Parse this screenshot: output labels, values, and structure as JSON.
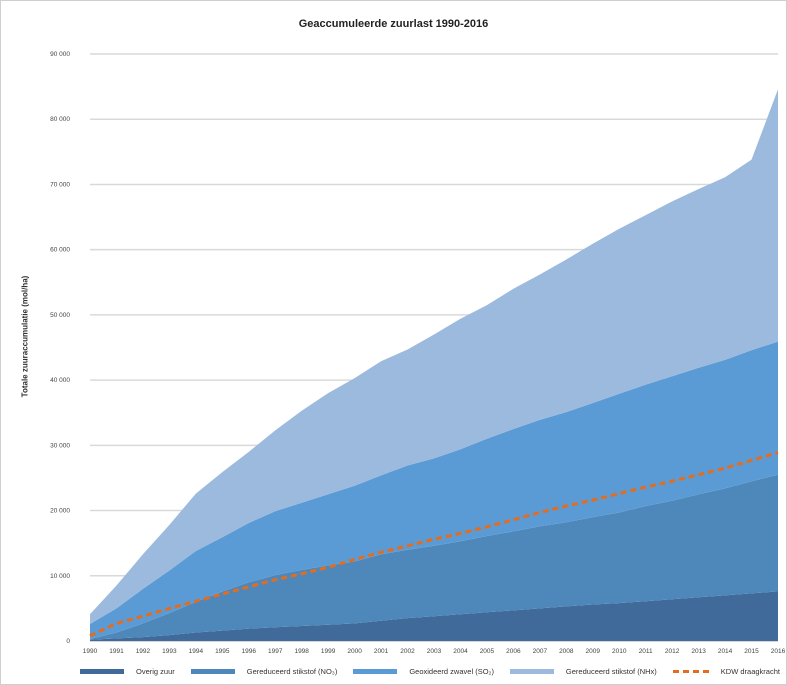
{
  "chart_data": {
    "type": "area",
    "title": "Geaccumuleerde zuurlast 1990-2016",
    "ylabel": "Totale zuuraccumulatie (mol/ha)",
    "xlabel": "",
    "ylim": [
      0,
      90000
    ],
    "yticks": [
      0,
      10000,
      20000,
      30000,
      40000,
      50000,
      60000,
      70000,
      80000,
      90000
    ],
    "ytick_labels": [
      "0",
      "10 000",
      "20 000",
      "30 000",
      "40 000",
      "50 000",
      "60 000",
      "70 000",
      "80 000",
      "90 000"
    ],
    "x": [
      "1990",
      "1991",
      "1992",
      "1993",
      "1994",
      "1995",
      "1996",
      "1997",
      "1998",
      "1999",
      "2000",
      "2001",
      "2002",
      "2003",
      "2004",
      "2005",
      "2006",
      "2007",
      "2008",
      "2009",
      "2010",
      "2011",
      "2012",
      "2013",
      "2014",
      "2015",
      "2016"
    ],
    "stacked": true,
    "series": [
      {
        "name": "Overig zuur",
        "color": "#3f6a9a",
        "values": [
          200,
          400,
          600,
          900,
          1300,
          1600,
          1900,
          2100,
          2300,
          2500,
          2700,
          3100,
          3500,
          3800,
          4100,
          4400,
          4700,
          5000,
          5300,
          5600,
          5800,
          6100,
          6400,
          6700,
          7000,
          7300,
          7600
        ]
      },
      {
        "name": "Gereduceerd stikstof (NO₃)",
        "color": "#4e88bb",
        "values": [
          100,
          900,
          2100,
          3400,
          4700,
          6000,
          7100,
          8000,
          8600,
          9100,
          9500,
          10200,
          10500,
          10800,
          11200,
          11700,
          12100,
          12600,
          12900,
          13400,
          13900,
          14600,
          15100,
          15800,
          16400,
          17200,
          17900
        ]
      },
      {
        "name": "Geoxideerd zwavel (SO₂)",
        "color": "#5b9bd5",
        "values": [
          2300,
          3700,
          5300,
          6500,
          7800,
          8300,
          9100,
          9800,
          10300,
          10900,
          11600,
          12100,
          12900,
          13400,
          14100,
          14900,
          15700,
          16300,
          16900,
          17500,
          18200,
          18600,
          19100,
          19400,
          19700,
          20100,
          20400
        ]
      },
      {
        "name": "Gereduceerd stikstof (NHx)",
        "color": "#9bbade",
        "values": [
          1500,
          3500,
          5300,
          7000,
          8800,
          10000,
          10900,
          12400,
          14100,
          15500,
          16500,
          17500,
          17800,
          19000,
          20000,
          20500,
          21500,
          22300,
          23400,
          24400,
          25300,
          26000,
          26800,
          27400,
          28000,
          29200,
          38700
        ]
      }
    ],
    "line": {
      "name": "KDW draagkracht",
      "color": "#e46c1f",
      "style": "dashed",
      "values": [
        800,
        2700,
        3800,
        5000,
        6100,
        7200,
        8300,
        9400,
        10300,
        11300,
        12500,
        13600,
        14600,
        15600,
        16500,
        17500,
        18600,
        19700,
        20700,
        21600,
        22600,
        23600,
        24500,
        25500,
        26500,
        27700,
        28900
      ]
    }
  }
}
